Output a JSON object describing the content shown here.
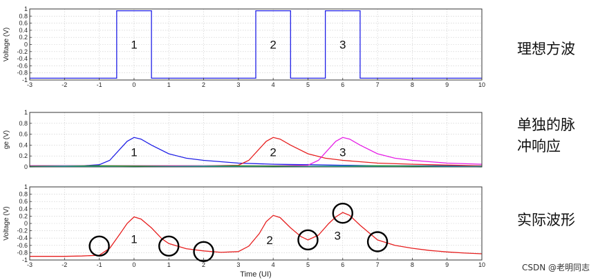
{
  "chart_data": [
    {
      "type": "line",
      "title": "",
      "ylabel": "Voltage (V)",
      "xlabel": "",
      "xlim": [
        -3,
        10
      ],
      "ylim": [
        -1,
        1
      ],
      "x_ticks": [
        "-3",
        "-2",
        "-1",
        "0",
        "1",
        "2",
        "3",
        "4",
        "5",
        "6",
        "7",
        "8",
        "9",
        "10"
      ],
      "y_ticks": [
        "1",
        "0.8",
        "0.6",
        "0.4",
        "0.2",
        "0",
        "-0.2",
        "-0.4",
        "-0.6",
        "-0.8",
        "-1"
      ],
      "grid": true,
      "series": [
        {
          "color": "#1e1ee6",
          "x": [
            -3,
            -0.5,
            -0.5,
            0.5,
            0.5,
            3.5,
            3.5,
            4.5,
            4.5,
            5.5,
            5.5,
            6.5,
            6.5,
            10
          ],
          "y": [
            -0.95,
            -0.95,
            0.95,
            0.95,
            -0.95,
            -0.95,
            0.95,
            0.95,
            -0.95,
            -0.95,
            0.95,
            0.95,
            -0.95,
            -0.95
          ]
        }
      ],
      "annotations": [
        {
          "text": "1",
          "x": 0,
          "y": 0
        },
        {
          "text": "2",
          "x": 4,
          "y": 0
        },
        {
          "text": "3",
          "x": 6,
          "y": 0
        }
      ],
      "side_label": [
        "理想方波"
      ]
    },
    {
      "type": "line",
      "title": "",
      "ylabel": "ge  (V)",
      "xlabel": "",
      "xlim": [
        -3,
        10
      ],
      "ylim": [
        0,
        1
      ],
      "x_ticks": [],
      "y_ticks": [
        "1",
        "0.8",
        "0.6",
        "0.4",
        "0.2",
        "0"
      ],
      "grid": true,
      "series": [
        {
          "color": "#1e1ee6",
          "x": [
            -3,
            -1.5,
            -1,
            -0.7,
            -0.4,
            -0.2,
            0,
            0.2,
            0.5,
            1,
            1.5,
            2,
            3,
            4,
            5,
            6,
            7,
            8,
            10
          ],
          "y": [
            0.02,
            0.02,
            0.04,
            0.12,
            0.33,
            0.47,
            0.54,
            0.51,
            0.4,
            0.24,
            0.16,
            0.12,
            0.07,
            0.05,
            0.04,
            0.03,
            0.02,
            0.02,
            0.02
          ]
        },
        {
          "color": "#e61e1e",
          "x": [
            -3,
            2,
            3,
            3.3,
            3.6,
            3.8,
            4,
            4.2,
            4.5,
            5,
            5.5,
            6,
            7,
            8,
            10
          ],
          "y": [
            0.02,
            0.02,
            0.03,
            0.12,
            0.33,
            0.47,
            0.54,
            0.51,
            0.4,
            0.24,
            0.16,
            0.12,
            0.07,
            0.05,
            0.02
          ]
        },
        {
          "color": "#e61ee6",
          "x": [
            -3,
            4,
            5,
            5.3,
            5.6,
            5.8,
            6,
            6.2,
            6.5,
            7,
            7.5,
            8,
            9,
            10
          ],
          "y": [
            0.02,
            0.02,
            0.03,
            0.12,
            0.33,
            0.47,
            0.54,
            0.51,
            0.4,
            0.24,
            0.16,
            0.12,
            0.07,
            0.05
          ]
        },
        {
          "color": "#1ea01e",
          "x": [
            -3,
            -1,
            1,
            3,
            5,
            7,
            9,
            10
          ],
          "y": [
            0.01,
            0.02,
            0.01,
            0.02,
            0.01,
            0.02,
            0.01,
            0.0
          ]
        },
        {
          "color": "#1ec8d2",
          "x": [
            -3,
            -2,
            0,
            2,
            4,
            6,
            8,
            10
          ],
          "y": [
            0.0,
            0.01,
            0.0,
            0.01,
            0.0,
            0.01,
            0.0,
            0.01
          ]
        }
      ],
      "annotations": [
        {
          "text": "1",
          "x": 0,
          "y": 0.27
        },
        {
          "text": "2",
          "x": 4,
          "y": 0.27
        },
        {
          "text": "3",
          "x": 6,
          "y": 0.27
        }
      ],
      "side_label": [
        "单独的脉",
        "冲响应"
      ]
    },
    {
      "type": "line",
      "title": "",
      "ylabel": "Voltage (V)",
      "xlabel": "Time (UI)",
      "xlim": [
        -3,
        10
      ],
      "ylim": [
        -1,
        1
      ],
      "x_ticks": [
        "-3",
        "-2",
        "-1",
        "0",
        "1",
        "2",
        "3",
        "4",
        "5",
        "6",
        "7",
        "8",
        "9",
        "10"
      ],
      "y_ticks": [
        "1",
        "0.8",
        "0.6",
        "0.4",
        "0.2",
        "0",
        "-0.2",
        "-0.4",
        "-0.6",
        "-0.8",
        "-1"
      ],
      "grid": true,
      "series": [
        {
          "color": "#e61e1e",
          "x": [
            -3,
            -2,
            -1.5,
            -1,
            -0.7,
            -0.4,
            -0.2,
            0,
            0.2,
            0.5,
            0.8,
            1,
            1.5,
            2,
            2.5,
            3,
            3.3,
            3.6,
            3.8,
            4,
            4.2,
            4.5,
            4.8,
            5,
            5.3,
            5.6,
            5.8,
            6,
            6.2,
            6.5,
            7,
            7.5,
            8,
            8.5,
            9,
            9.5,
            10
          ],
          "y": [
            -0.9,
            -0.9,
            -0.89,
            -0.87,
            -0.68,
            -0.28,
            0,
            0.18,
            0.12,
            -0.12,
            -0.42,
            -0.55,
            -0.69,
            -0.75,
            -0.79,
            -0.77,
            -0.62,
            -0.28,
            0.05,
            0.22,
            0.16,
            -0.12,
            -0.36,
            -0.45,
            -0.32,
            0,
            0.18,
            0.3,
            0.22,
            -0.05,
            -0.45,
            -0.6,
            -0.68,
            -0.74,
            -0.78,
            -0.81,
            -0.83
          ]
        }
      ],
      "markers": [
        {
          "x": -1,
          "y": -0.62
        },
        {
          "x": 1,
          "y": -0.62
        },
        {
          "x": 2,
          "y": -0.77
        },
        {
          "x": 5,
          "y": -0.45
        },
        {
          "x": 6,
          "y": 0.28
        },
        {
          "x": 7,
          "y": -0.5
        }
      ],
      "annotations": [
        {
          "text": "1",
          "x": 0,
          "y": -0.42
        },
        {
          "text": "2",
          "x": 3.9,
          "y": -0.45
        },
        {
          "text": "3",
          "x": 5.85,
          "y": -0.33
        }
      ],
      "side_label": [
        "实际波形"
      ]
    }
  ],
  "watermark": "CSDN @老明同志"
}
